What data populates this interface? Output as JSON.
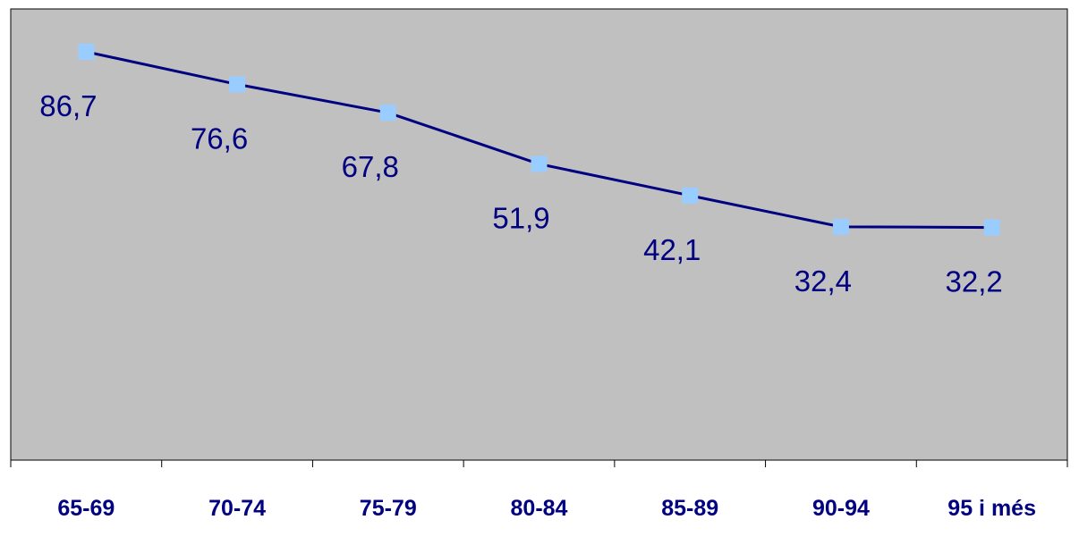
{
  "chart_data": {
    "type": "line",
    "title": "",
    "xlabel": "",
    "ylabel": "",
    "categories": [
      "65-69",
      "70-74",
      "75-79",
      "80-84",
      "85-89",
      "90-94",
      "95 i més"
    ],
    "series": [
      {
        "values": [
          86.7,
          76.6,
          67.8,
          51.9,
          42.1,
          32.4,
          32.2
        ]
      }
    ],
    "value_labels": [
      "86,7",
      "76,6",
      "67,8",
      "51,9",
      "42,1",
      "32,4",
      "32,2"
    ],
    "ylim": [
      -40,
      100
    ],
    "y_axis_visible": false,
    "grid": false,
    "legend": "none",
    "colors": {
      "plot_background": "#c0c0c0",
      "line": "#000080",
      "marker": "#99ccff",
      "text": "#000080"
    }
  }
}
